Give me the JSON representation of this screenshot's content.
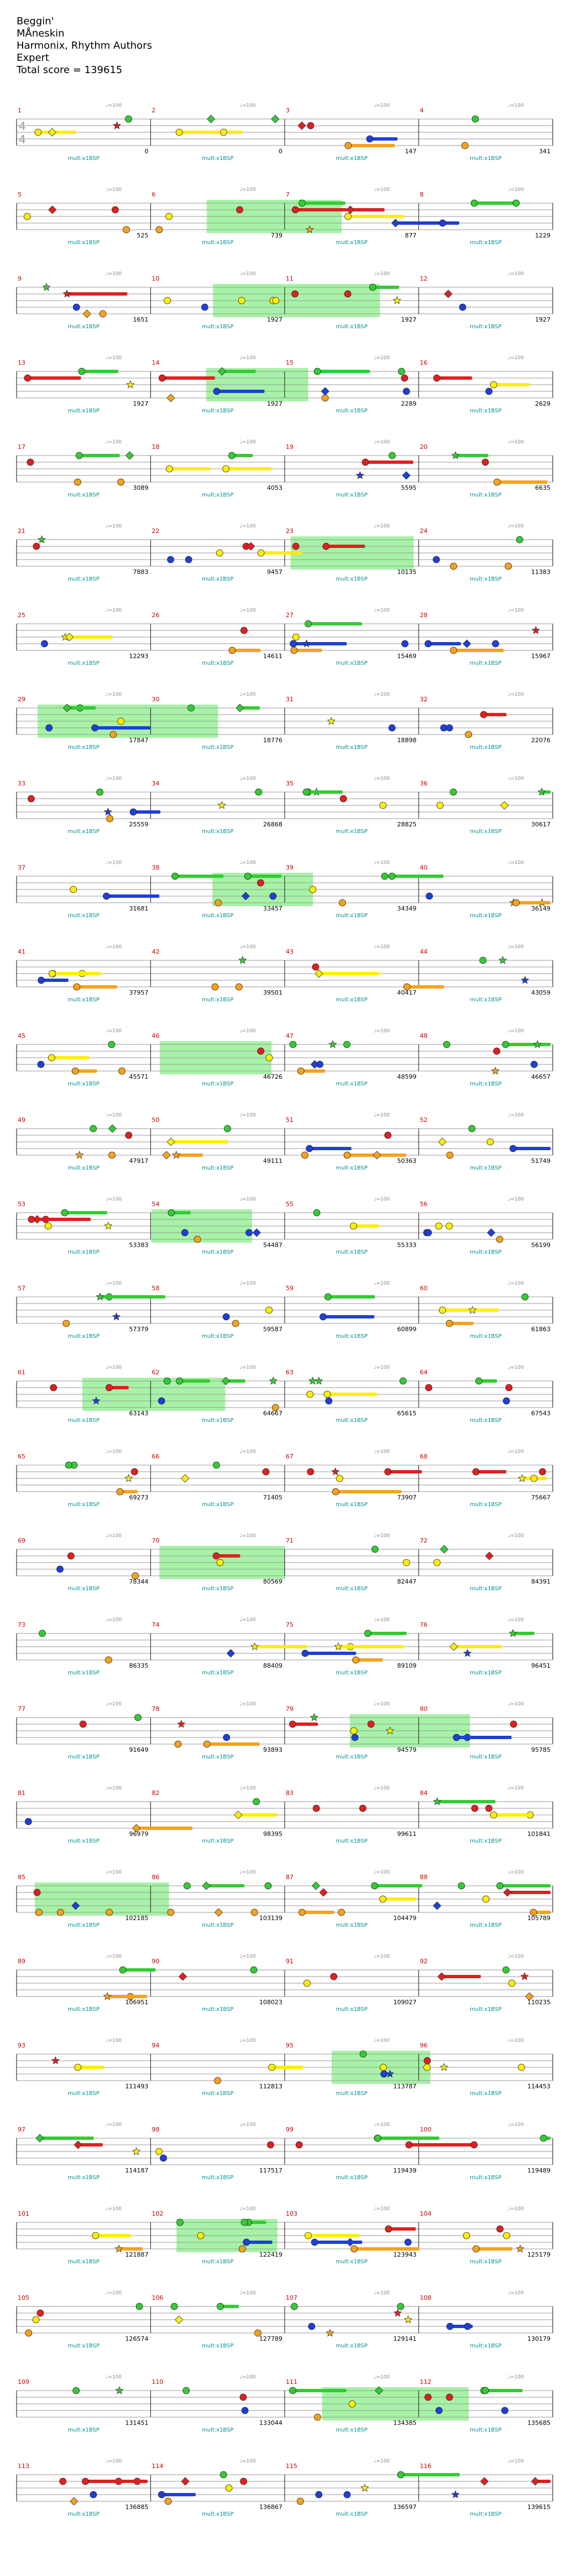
{
  "song": {
    "title": "Beggin'",
    "artist": "MÅneskin",
    "charter": "Harmonix, Rhythm Authors",
    "difficulty": "Expert",
    "total_score_label": "Total score = 139615"
  },
  "time_signature": {
    "top": "4",
    "bottom": "4"
  },
  "colors": {
    "green": "#33cc33",
    "red": "#e02020",
    "yellow": "#ffee00",
    "blue": "#1f3fd8",
    "orange": "#f7a21a",
    "star_power": "#88ee88",
    "measure_number": "#cc0000",
    "score": "#000000",
    "multiplier": "#009090",
    "tempo": "#888888"
  },
  "icons": {
    "note": "circle",
    "star_note": "star",
    "hopo": "diamond"
  },
  "multiplier_label": "mult:x1BSP",
  "rows": [
    {
      "measures": [
        1,
        2,
        3,
        4
      ],
      "scores": [
        "0",
        "0",
        "147",
        "341"
      ],
      "tempo": "♩=100"
    },
    {
      "measures": [
        5,
        6,
        7,
        8
      ],
      "scores": [
        "525",
        "739",
        "877",
        "1229"
      ],
      "tempo": "♩=100"
    },
    {
      "measures": [
        9,
        10,
        11,
        12
      ],
      "scores": [
        "1651",
        "1927",
        "1927",
        "1927"
      ],
      "tempo": "♩=100"
    },
    {
      "measures": [
        13,
        14,
        15,
        16
      ],
      "scores": [
        "1927",
        "1927",
        "2289",
        "2629"
      ],
      "tempo": "♩=100"
    },
    {
      "measures": [
        17,
        18,
        19,
        20
      ],
      "scores": [
        "3089",
        "4053",
        "5595",
        "6635"
      ],
      "tempo": "♩=100"
    },
    {
      "measures": [
        21,
        22,
        23,
        24
      ],
      "scores": [
        "7883",
        "9457",
        "10135",
        "11383"
      ],
      "tempo": "♩=100"
    },
    {
      "measures": [
        25,
        26,
        27,
        28
      ],
      "scores": [
        "12293",
        "14611",
        "15469",
        "15967"
      ],
      "tempo": "♩=100"
    },
    {
      "measures": [
        29,
        30,
        31,
        32
      ],
      "scores": [
        "17847",
        "18776",
        "18898",
        "22076"
      ],
      "tempo": "♩=100"
    },
    {
      "measures": [
        33,
        34,
        35,
        36
      ],
      "scores": [
        "25559",
        "26868",
        "28825",
        "30617"
      ],
      "tempo": "♩=100"
    },
    {
      "measures": [
        37,
        38,
        39,
        40
      ],
      "scores": [
        "31681",
        "33457",
        "34349",
        "36149"
      ],
      "tempo": "♩=100"
    },
    {
      "measures": [
        41,
        42,
        43,
        44
      ],
      "scores": [
        "37957",
        "39501",
        "40417",
        "43059"
      ],
      "tempo": "♩=100"
    },
    {
      "measures": [
        45,
        46,
        47,
        48
      ],
      "scores": [
        "45571",
        "46726",
        "48599",
        "46657"
      ],
      "tempo": "♩=100"
    },
    {
      "measures": [
        49,
        50,
        51,
        52
      ],
      "scores": [
        "47917",
        "49111",
        "50363",
        "51749"
      ],
      "tempo": "♩=100"
    },
    {
      "measures": [
        53,
        54,
        55,
        56
      ],
      "scores": [
        "53383",
        "54487",
        "55333",
        "56199"
      ],
      "tempo": "♩=100"
    },
    {
      "measures": [
        57,
        58,
        59,
        60
      ],
      "scores": [
        "57379",
        "59587",
        "60899",
        "61863"
      ],
      "tempo": "♩=100"
    },
    {
      "measures": [
        61,
        62,
        63,
        64
      ],
      "scores": [
        "63143",
        "64667",
        "65615",
        "67543"
      ],
      "tempo": "♩=100"
    },
    {
      "measures": [
        65,
        66,
        67,
        68
      ],
      "scores": [
        "69273",
        "71405",
        "73907",
        "75667"
      ],
      "tempo": "♩=100"
    },
    {
      "measures": [
        69,
        70,
        71,
        72
      ],
      "scores": [
        "78344",
        "80569",
        "82447",
        "84391"
      ],
      "tempo": "♩=100"
    },
    {
      "measures": [
        73,
        74,
        75,
        76
      ],
      "scores": [
        "86335",
        "88409",
        "89109",
        "96451"
      ],
      "tempo": "♩=100"
    },
    {
      "measures": [
        77,
        78,
        79,
        80
      ],
      "scores": [
        "91649",
        "93893",
        "94579",
        "95785"
      ],
      "tempo": "♩=100"
    },
    {
      "measures": [
        81,
        82,
        83,
        84
      ],
      "scores": [
        "96979",
        "98395",
        "99611",
        "101841"
      ],
      "tempo": "♩=100"
    },
    {
      "measures": [
        85,
        86,
        87,
        88
      ],
      "scores": [
        "102185",
        "103139",
        "104479",
        "105789"
      ],
      "tempo": "♩=100"
    },
    {
      "measures": [
        89,
        90,
        91,
        92
      ],
      "scores": [
        "106951",
        "108023",
        "109027",
        "110235"
      ],
      "tempo": "♩=100"
    },
    {
      "measures": [
        93,
        94,
        95,
        96
      ],
      "scores": [
        "111493",
        "112813",
        "113787",
        "114453"
      ],
      "tempo": "♩=100"
    },
    {
      "measures": [
        97,
        98,
        99,
        100
      ],
      "scores": [
        "114187",
        "117517",
        "119439",
        "119489"
      ],
      "tempo": "♩=100"
    },
    {
      "measures": [
        101,
        102,
        103,
        104
      ],
      "scores": [
        "121887",
        "122419",
        "123943",
        "125179"
      ],
      "tempo": "♩=100"
    },
    {
      "measures": [
        105,
        106,
        107,
        108
      ],
      "scores": [
        "126574",
        "127789",
        "129141",
        "130179"
      ],
      "tempo": "♩=100"
    },
    {
      "measures": [
        109,
        110,
        111,
        112
      ],
      "scores": [
        "131451",
        "133044",
        "134385",
        "135685"
      ],
      "tempo": "♩=100"
    },
    {
      "measures": [
        113,
        114,
        115,
        116
      ],
      "scores": [
        "136885",
        "136867",
        "136597",
        "139615"
      ],
      "tempo": "♩=100"
    }
  ]
}
